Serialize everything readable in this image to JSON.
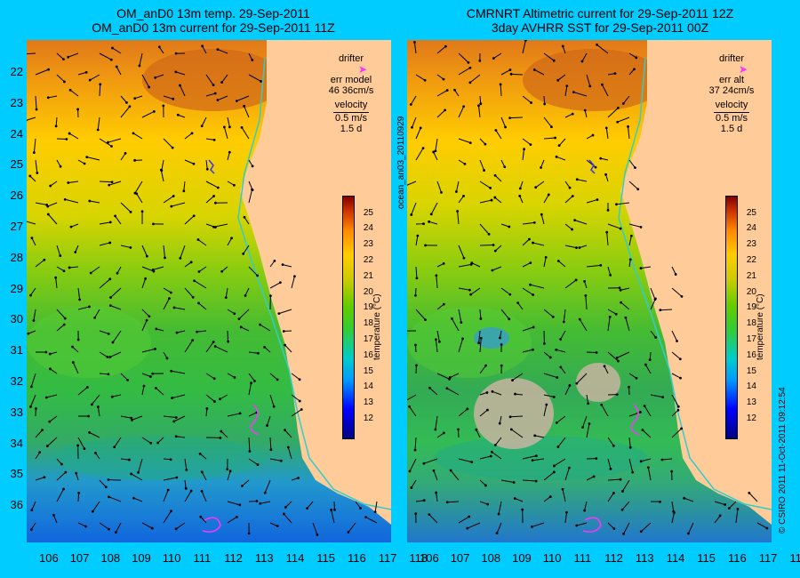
{
  "left": {
    "title_line1": "OM_anD0 13m temp. 29-Sep-2011",
    "title_line2": "OM_anD0 13m current for 29-Sep-2011 11Z",
    "legend": {
      "drifter": "drifter",
      "err_line1": "err model",
      "err_line2": "46 36cm/s",
      "velocity": "velocity",
      "speed": "0.5 m/s",
      "days": "1.5 d"
    }
  },
  "right": {
    "title_line1": "CMRNRT Altimetric current for 29-Sep-2011 12Z",
    "title_line2": "3day AVHRR SST for 29-Sep-2011 00Z",
    "legend": {
      "drifter": "drifter",
      "err_line1": "err alt",
      "err_line2": "37 24cm/s",
      "velocity": "velocity",
      "speed": "0.5 m/s",
      "days": "1.5 d"
    }
  },
  "lon_ticks": [
    "106",
    "107",
    "108",
    "109",
    "110",
    "111",
    "112",
    "113",
    "114",
    "115",
    "116",
    "117",
    "118"
  ],
  "lat_ticks": [
    "22",
    "23",
    "24",
    "25",
    "26",
    "27",
    "28",
    "29",
    "30",
    "31",
    "32",
    "33",
    "34",
    "35",
    "36"
  ],
  "colorbar": {
    "title": "temperature (°C)",
    "labels": [
      "12",
      "13",
      "14",
      "15",
      "16",
      "17",
      "18",
      "19",
      "20",
      "21",
      "22",
      "23",
      "24",
      "25"
    ]
  },
  "side_text_middle": "ocean_an03_20110929",
  "side_text_right": "© CSIRO 2011  11-Oct-2011 09:12:54",
  "colors": {
    "background": "#00ccff",
    "land": "#ffcc99",
    "drifter": "#ff33ff",
    "coast_line": "#33cccc",
    "cloud": "#c8b4a0"
  }
}
